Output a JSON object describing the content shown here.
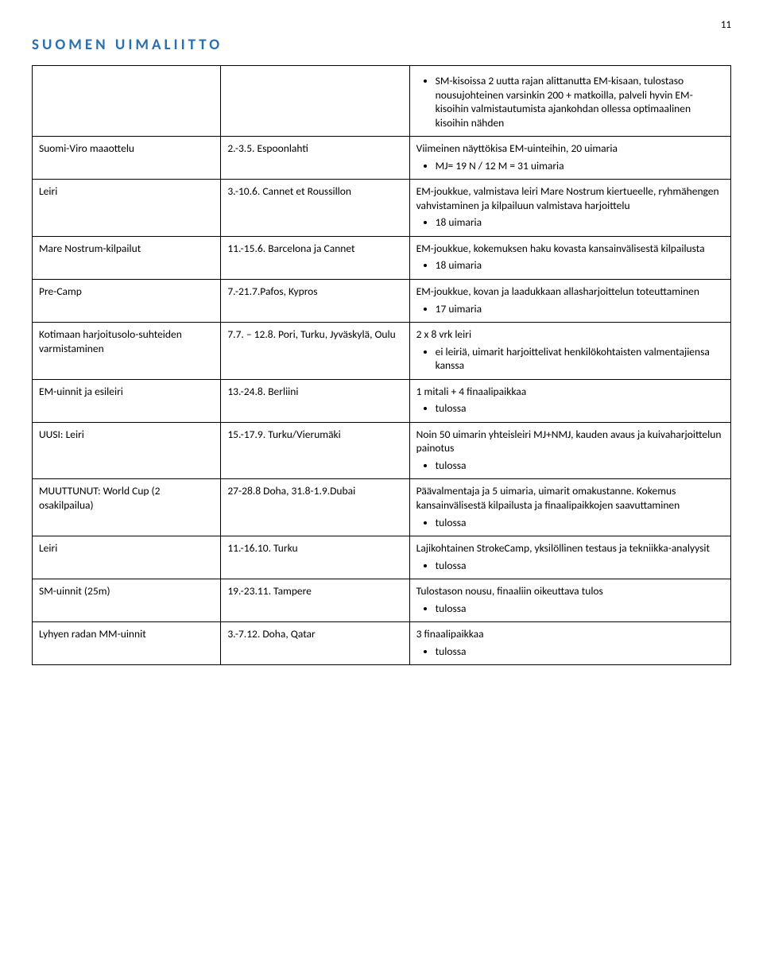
{
  "page_number": "11",
  "logo_text": "SUOMEN UIMALIITTO",
  "rows": [
    {
      "c1": "",
      "c2": "",
      "c3": {
        "bullets": [
          "SM-kisoissa 2 uutta rajan alittanutta EM-kisaan, tulostaso nousujohteinen varsinkin 200 + matkoilla, palveli hyvin EM-kisoihin valmistautumista ajankohdan ollessa optimaalinen kisoihin nähden"
        ]
      }
    },
    {
      "c1": "Suomi-Viro maaottelu",
      "c2": "2.-3.5. Espoonlahti",
      "c3": {
        "text": "Viimeinen näyttökisa EM-uinteihin, 20 uimaria",
        "bullets": [
          "MJ= 19 N / 12 M = 31 uimaria"
        ]
      }
    },
    {
      "c1": "Leiri",
      "c2": "3.-10.6. Cannet et Roussillon",
      "c3": {
        "text": "EM-joukkue, valmistava leiri Mare Nostrum kiertueelle, ryhmähengen vahvistaminen ja kilpailuun valmistava harjoittelu",
        "bullets": [
          "18 uimaria"
        ]
      }
    },
    {
      "c1": "Mare Nostrum-kilpailut",
      "c2": "11.-15.6. Barcelona ja Cannet",
      "c3": {
        "text": "EM-joukkue, kokemuksen haku kovasta kansainvälisestä kilpailusta",
        "bullets": [
          "18 uimaria"
        ]
      }
    },
    {
      "c1": "Pre-Camp",
      "c2": "7.-21.7.Pafos, Kypros",
      "c3": {
        "text": "EM-joukkue, kovan ja laadukkaan allasharjoittelun toteuttaminen",
        "bullets": [
          "17 uimaria"
        ]
      }
    },
    {
      "c1": "Kotimaan harjoitusolo-suhteiden varmistaminen",
      "c2": "7.7. – 12.8. Pori, Turku, Jyväskylä, Oulu",
      "c3": {
        "text": "2 x 8 vrk leiri",
        "bullets": [
          "ei leiriä, uimarit harjoittelivat henkilökohtaisten valmentajiensa kanssa"
        ]
      }
    },
    {
      "c1": "EM-uinnit ja esileiri",
      "c2": "13.-24.8. Berliini",
      "c3": {
        "text": "1 mitali + 4 finaalipaikkaa",
        "bullets": [
          "tulossa"
        ]
      }
    },
    {
      "c1": "UUSI: Leiri",
      "c2": "15.-17.9. Turku/Vierumäki",
      "c3": {
        "text": "Noin 50 uimarin yhteisleiri  MJ+NMJ, kauden avaus ja kuivaharjoittelun painotus",
        "bullets": [
          "tulossa"
        ]
      }
    },
    {
      "c1": "MUUTTUNUT: World Cup (2 osakilpailua)",
      "c2": "27-28.8 Doha, 31.8-1.9.Dubai",
      "c3": {
        "text": "Päävalmentaja ja 5 uimaria, uimarit omakustanne. Kokemus kansainvälisestä kilpailusta ja finaalipaikkojen saavuttaminen",
        "bullets": [
          "tulossa"
        ]
      }
    },
    {
      "c1": "Leiri",
      "c2": "11.-16.10. Turku",
      "c3": {
        "text": "Lajikohtainen StrokeCamp, yksilöllinen testaus ja tekniikka-analyysit",
        "bullets": [
          "tulossa"
        ]
      }
    },
    {
      "c1": "SM-uinnit (25m)",
      "c2": "19.-23.11. Tampere",
      "c3": {
        "text": "Tulostason nousu, finaaliin oikeuttava tulos",
        "bullets": [
          "tulossa"
        ]
      }
    },
    {
      "c1": "Lyhyen radan MM-uinnit",
      "c2": "3.-7.12. Doha, Qatar",
      "c3": {
        "text": "3 finaalipaikkaa",
        "bullets": [
          "tulossa"
        ]
      }
    }
  ]
}
